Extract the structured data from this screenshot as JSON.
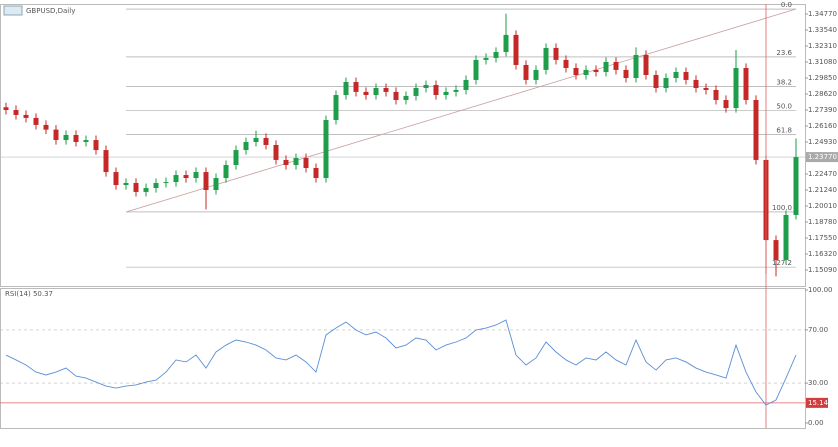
{
  "chart_data": [
    {
      "type": "candlestick",
      "title": "GBPUSD,Daily",
      "up_color": "#1e9e4a",
      "down_color": "#c62828",
      "grid": false,
      "open": [
        1.276,
        1.2739,
        1.2701,
        1.2678,
        1.2624,
        1.2588,
        1.2508,
        1.2547,
        1.2493,
        1.2508,
        1.2431,
        1.2262,
        1.2162,
        1.2178,
        1.2109,
        1.2139,
        1.2178,
        1.2185,
        1.2239,
        1.2216,
        1.2262,
        1.2124,
        1.2216,
        1.2316,
        1.2431,
        1.2493,
        1.2524,
        1.247,
        1.2355,
        1.2316,
        1.237,
        1.2293,
        1.2216,
        1.2662,
        1.2854,
        1.2954,
        1.2878,
        1.2854,
        1.2908,
        1.2878,
        1.2816,
        1.2847,
        1.2908,
        1.2931,
        1.2854,
        1.2878,
        1.2893,
        1.297,
        1.3124,
        1.3139,
        1.3185,
        1.3316,
        1.3085,
        1.297,
        1.3047,
        1.3216,
        1.3124,
        1.3062,
        1.3008,
        1.3047,
        1.3031,
        1.3108,
        1.3047,
        1.2985,
        1.3162,
        1.3008,
        1.2908,
        1.2985,
        1.3031,
        1.297,
        1.2908,
        1.2893,
        1.2816,
        1.2754,
        1.3062,
        1.2816,
        1.2355,
        1.1739,
        1.1586,
        1.1932
      ],
      "high": [
        1.2795,
        1.2774,
        1.2736,
        1.2713,
        1.2659,
        1.2623,
        1.2582,
        1.2582,
        1.2543,
        1.2543,
        1.2466,
        1.2297,
        1.2213,
        1.2213,
        1.2174,
        1.2213,
        1.222,
        1.2274,
        1.2274,
        1.2297,
        1.2297,
        1.2251,
        1.2351,
        1.2466,
        1.2528,
        1.258,
        1.2559,
        1.2505,
        1.239,
        1.2405,
        1.2405,
        1.2328,
        1.2697,
        1.2889,
        1.2989,
        1.2989,
        1.2913,
        1.2943,
        1.2943,
        1.2913,
        1.2882,
        1.2943,
        1.2966,
        1.2966,
        1.2913,
        1.2928,
        1.3005,
        1.3159,
        1.3174,
        1.322,
        1.348,
        1.3351,
        1.312,
        1.3082,
        1.3251,
        1.3251,
        1.3159,
        1.3097,
        1.3082,
        1.3082,
        1.3143,
        1.3143,
        1.3082,
        1.322,
        1.3197,
        1.3043,
        1.302,
        1.3066,
        1.3066,
        1.3005,
        1.2943,
        1.2928,
        1.2851,
        1.32,
        1.3097,
        1.2851,
        1.239,
        1.1774,
        1.1967,
        1.252
      ],
      "low": [
        1.2704,
        1.2666,
        1.2643,
        1.2589,
        1.2553,
        1.2473,
        1.2473,
        1.2458,
        1.2458,
        1.2396,
        1.2227,
        1.2127,
        1.2127,
        1.2074,
        1.2074,
        1.2104,
        1.2143,
        1.215,
        1.2181,
        1.2181,
        1.1975,
        1.2089,
        1.2181,
        1.2281,
        1.2396,
        1.2458,
        1.2435,
        1.232,
        1.2281,
        1.2281,
        1.2258,
        1.2181,
        1.2181,
        1.2627,
        1.2819,
        1.2843,
        1.2819,
        1.2819,
        1.2843,
        1.2781,
        1.2781,
        1.2812,
        1.2873,
        1.2819,
        1.2819,
        1.2843,
        1.2858,
        1.2935,
        1.3089,
        1.3104,
        1.315,
        1.305,
        1.2935,
        1.2935,
        1.3012,
        1.3089,
        1.3027,
        1.2973,
        1.2973,
        1.2996,
        1.2996,
        1.3012,
        1.295,
        1.295,
        1.2973,
        1.2873,
        1.2873,
        1.295,
        1.2935,
        1.2873,
        1.2858,
        1.2781,
        1.2719,
        1.2719,
        1.2781,
        1.232,
        1.148,
        1.146,
        1.1551,
        1.1897
      ],
      "close": [
        1.2739,
        1.2701,
        1.2678,
        1.2624,
        1.2588,
        1.2508,
        1.2547,
        1.2493,
        1.2508,
        1.2431,
        1.2262,
        1.2162,
        1.2178,
        1.2109,
        1.2139,
        1.2178,
        1.2185,
        1.2239,
        1.2216,
        1.2262,
        1.2124,
        1.2216,
        1.2316,
        1.2431,
        1.2493,
        1.2524,
        1.247,
        1.2355,
        1.2316,
        1.237,
        1.2293,
        1.2216,
        1.2662,
        1.2854,
        1.2954,
        1.2878,
        1.2854,
        1.2908,
        1.2878,
        1.2816,
        1.2847,
        1.2908,
        1.2931,
        1.2854,
        1.2878,
        1.2893,
        1.297,
        1.3124,
        1.3139,
        1.3185,
        1.3316,
        1.3085,
        1.297,
        1.3047,
        1.3216,
        1.3124,
        1.3062,
        1.3008,
        1.3047,
        1.3031,
        1.3108,
        1.3047,
        1.2985,
        1.3162,
        1.3008,
        1.2908,
        1.2985,
        1.3031,
        1.297,
        1.2908,
        1.2893,
        1.2816,
        1.2754,
        1.3062,
        1.2816,
        1.2355,
        1.1739,
        1.1586,
        1.1932,
        1.2377
      ],
      "ylim": [
        1.1386,
        1.3523
      ],
      "yticks": [
        {
          "value": 1.3477,
          "label": "1.34770"
        },
        {
          "value": 1.3354,
          "label": "1.33540"
        },
        {
          "value": 1.3231,
          "label": "1.32310"
        },
        {
          "value": 1.3108,
          "label": "1.31080"
        },
        {
          "value": 1.2985,
          "label": "1.29850"
        },
        {
          "value": 1.2862,
          "label": "1.28620"
        },
        {
          "value": 1.2739,
          "label": "1.27390"
        },
        {
          "value": 1.2616,
          "label": "1.26160"
        },
        {
          "value": 1.2493,
          "label": "1.24930"
        },
        {
          "value": 1.2247,
          "label": "1.22470"
        },
        {
          "value": 1.2124,
          "label": "1.21240"
        },
        {
          "value": 1.2001,
          "label": "1.20010"
        },
        {
          "value": 1.1878,
          "label": "1.18780"
        },
        {
          "value": 1.1755,
          "label": "1.17550"
        },
        {
          "value": 1.1632,
          "label": "1.16320"
        },
        {
          "value": 1.1509,
          "label": "1.15090"
        }
      ],
      "current_price": {
        "value": 1.2377,
        "label": "1.23770"
      },
      "fib_start_bar": 12,
      "fib_levels": [
        {
          "value": 1.3515,
          "label": "0.0"
        },
        {
          "value": 1.3147,
          "label": "23.6"
        },
        {
          "value": 1.2919,
          "label": "38.2"
        },
        {
          "value": 1.2735,
          "label": "50.0"
        },
        {
          "value": 1.2551,
          "label": "61.8"
        },
        {
          "value": 1.1955,
          "label": "100.0"
        },
        {
          "value": 1.1531,
          "label": "127.2"
        }
      ],
      "trendline": {
        "bars": [
          12,
          79
        ],
        "prices": [
          1.1955,
          1.3515
        ],
        "color": "#c9a0a0"
      },
      "vline_bar": 76,
      "vline_color": "#e06060"
    },
    {
      "type": "line",
      "title": "RSI(14) 50.37",
      "color": "#5b8fd6",
      "values": [
        51.1,
        47.4,
        43.6,
        38.3,
        36.1,
        38.3,
        41.3,
        35.3,
        33.8,
        30.8,
        27.8,
        26.3,
        27.8,
        28.6,
        30.8,
        32.3,
        38.3,
        47.4,
        45.9,
        51.1,
        41.3,
        53.4,
        58.6,
        62.4,
        60.9,
        58.6,
        54.9,
        48.9,
        47.4,
        51.1,
        45.9,
        38.3,
        66.2,
        71.4,
        75.9,
        69.9,
        66.2,
        68.4,
        63.9,
        56.4,
        58.6,
        63.9,
        62.4,
        54.9,
        58.6,
        60.9,
        63.9,
        69.9,
        71.4,
        73.7,
        77.4,
        51.1,
        43.6,
        48.9,
        60.9,
        53.4,
        47.4,
        43.6,
        48.9,
        47.4,
        53.4,
        47.4,
        43.6,
        62.4,
        45.9,
        39.8,
        47.4,
        48.9,
        45.9,
        41.3,
        38.3,
        36.1,
        33.8,
        58.6,
        38.3,
        23.3,
        13.5,
        17.3,
        33.8,
        51.1
      ],
      "ylim": [
        0,
        100
      ],
      "yticks": [
        {
          "value": 100,
          "label": "100.00"
        },
        {
          "value": 70,
          "label": "70.00"
        },
        {
          "value": 30,
          "label": "30.00"
        },
        {
          "value": 0,
          "label": "0.00"
        }
      ],
      "levels": [
        70,
        30
      ],
      "marker_level": {
        "value": 15.14,
        "label": "15.14"
      }
    }
  ]
}
